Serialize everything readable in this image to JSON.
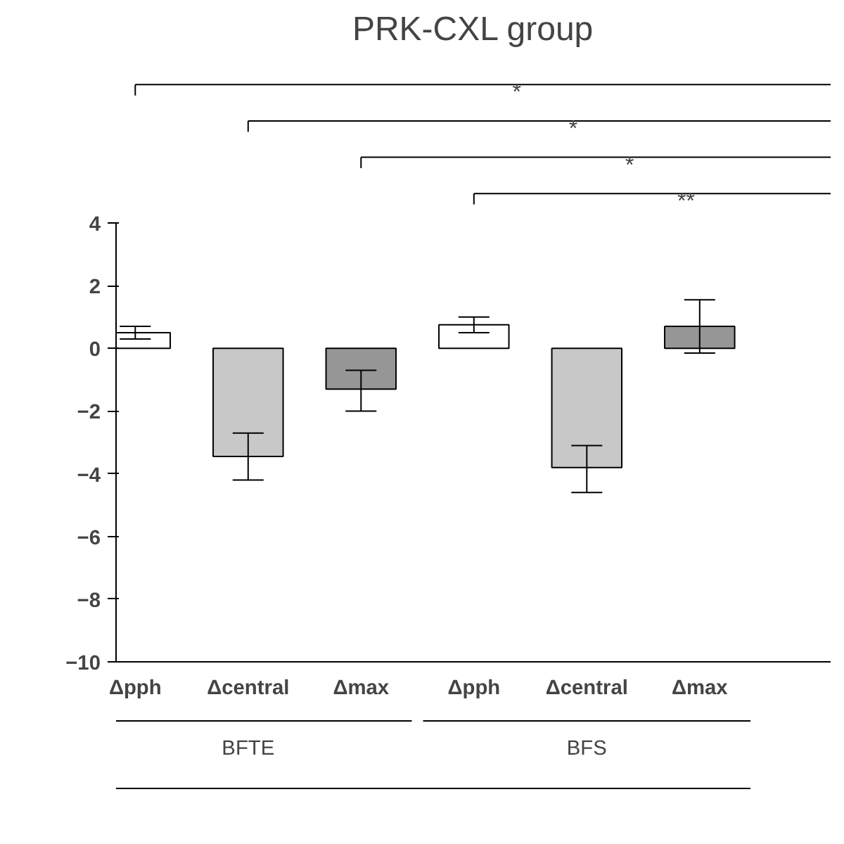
{
  "chart_data": {
    "type": "bar",
    "title": "PRK-CXL group",
    "categories": [
      "Δpph",
      "Δcentral",
      "Δmax",
      "Δpph",
      "Δcentral",
      "Δmax"
    ],
    "values": [
      0.5,
      -3.45,
      -1.3,
      0.75,
      -3.8,
      0.7
    ],
    "colors": [
      "#ffffff",
      "#c8c8c8",
      "#969696",
      "#ffffff",
      "#c8c8c8",
      "#969696"
    ],
    "errors": [
      [
        0.3,
        0.7
      ],
      [
        -4.2,
        -2.7
      ],
      [
        -2.0,
        -0.7
      ],
      [
        0.5,
        1.0
      ],
      [
        -4.6,
        -3.1
      ],
      [
        -0.15,
        1.55
      ]
    ],
    "ylim": [
      -10,
      4
    ],
    "yticks": [
      -10,
      -8,
      -6,
      -4,
      -2,
      0,
      2,
      4
    ],
    "grid": false,
    "annotations": [
      "*",
      "*",
      "*",
      "**",
      "BFTE",
      "BFS"
    ]
  }
}
